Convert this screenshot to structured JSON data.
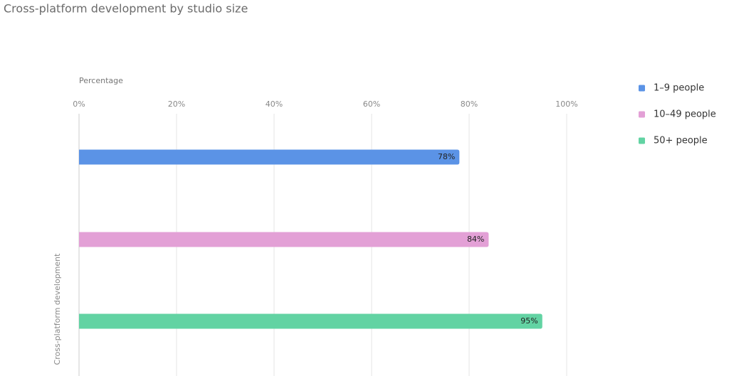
{
  "chart_data": {
    "type": "bar",
    "orientation": "horizontal",
    "title": "Cross-platform development by studio size",
    "xlabel": "Percentage",
    "categories": [
      "Cross-platform development"
    ],
    "series": [
      {
        "name": "1–9 people",
        "color": "#5b93e6",
        "values": [
          78
        ],
        "value_labels": [
          "78%"
        ]
      },
      {
        "name": "10–49 people",
        "color": "#e3a0d6",
        "values": [
          84
        ],
        "value_labels": [
          "84%"
        ]
      },
      {
        "name": "50+ people",
        "color": "#62d3a3",
        "values": [
          95
        ],
        "value_labels": [
          "95%"
        ]
      }
    ],
    "xlim": [
      0,
      100
    ],
    "xticks": [
      {
        "value": 0,
        "label": "0%"
      },
      {
        "value": 20,
        "label": "20%"
      },
      {
        "value": 40,
        "label": "40%"
      },
      {
        "value": 60,
        "label": "60%"
      },
      {
        "value": 80,
        "label": "80%"
      },
      {
        "value": 100,
        "label": "100%"
      }
    ],
    "grid": true,
    "legend": "right"
  }
}
